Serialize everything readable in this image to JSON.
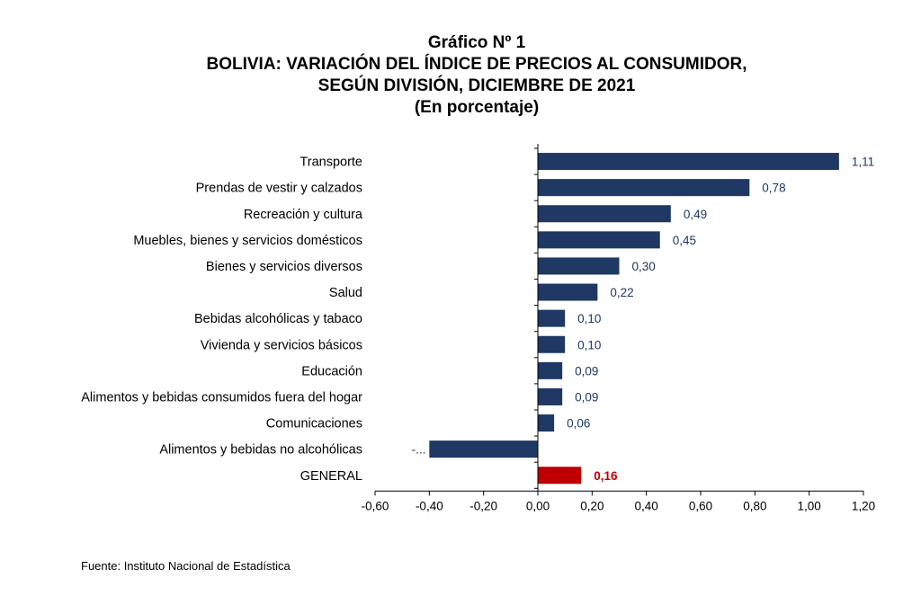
{
  "title": {
    "line1": "Gráfico Nº 1",
    "line2": "BOLIVIA: VARIACIÓN DEL ÍNDICE DE PRECIOS AL CONSUMIDOR,",
    "line3": "SEGÚN DIVISIÓN, DICIEMBRE DE 2021",
    "line4": "(En porcentaje)"
  },
  "source": "Fuente: Instituto Nacional de Estadística",
  "colors": {
    "bar": "#1f3864",
    "highlight": "#c00000",
    "value_text": "#1f3864",
    "axis": "#000000"
  },
  "chart_data": {
    "type": "bar",
    "orientation": "horizontal",
    "categories": [
      "Transporte",
      "Prendas de vestir y calzados",
      "Recreación y cultura",
      "Muebles, bienes y servicios domésticos",
      "Bienes y servicios diversos",
      "Salud",
      "Bebidas alcohólicas y tabaco",
      "Vivienda y servicios básicos",
      "Educación",
      "Alimentos y bebidas consumidos fuera del hogar",
      "Comunicaciones",
      "Alimentos y bebidas no alcohólicas",
      "GENERAL"
    ],
    "values": [
      1.11,
      0.78,
      0.49,
      0.45,
      0.3,
      0.22,
      0.1,
      0.1,
      0.09,
      0.09,
      0.06,
      -0.4,
      0.16
    ],
    "value_labels": [
      "1,11",
      "0,78",
      "0,49",
      "0,45",
      "0,30",
      "0,22",
      "0,10",
      "0,10",
      "0,09",
      "0,09",
      "0,06",
      "-...",
      "0,16"
    ],
    "highlight_category": "GENERAL",
    "xlim": [
      -0.6,
      1.2
    ],
    "xticks": [
      -0.6,
      -0.4,
      -0.2,
      0.0,
      0.2,
      0.4,
      0.6,
      0.8,
      1.0,
      1.2
    ],
    "xtick_labels": [
      "-0,60",
      "-0,40",
      "-0,20",
      "0,00",
      "0,20",
      "0,40",
      "0,60",
      "0,80",
      "1,00",
      "1,20"
    ],
    "grid": false,
    "legend": "none",
    "xlabel": "",
    "ylabel": ""
  }
}
